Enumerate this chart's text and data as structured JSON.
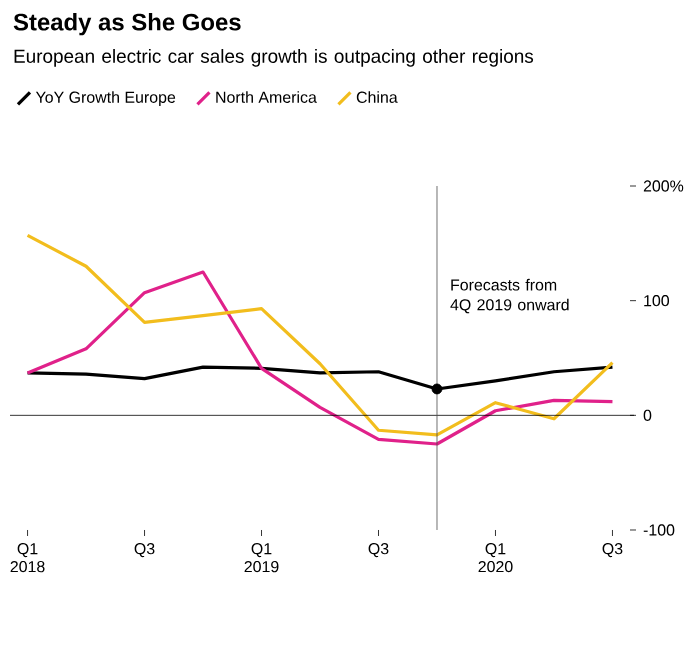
{
  "chart_data": {
    "type": "line",
    "title": "Steady as She Goes",
    "subtitle": "European electric car sales growth is outpacing other regions",
    "x": [
      "2018-01",
      "2018-04",
      "2018-07",
      "2018-10",
      "2019-01",
      "2019-04",
      "2019-07",
      "2019-10",
      "2020-01",
      "2020-04",
      "2020-07"
    ],
    "series": [
      {
        "name": "YoY Growth Europe",
        "color": "#000000",
        "values": [
          37,
          36,
          32,
          42,
          41,
          37,
          38,
          23,
          30,
          38,
          42
        ]
      },
      {
        "name": "North America",
        "color": "#e0218a",
        "values": [
          37,
          58,
          107,
          125,
          41,
          7,
          -21,
          -25,
          4,
          13,
          12
        ]
      },
      {
        "name": "China",
        "color": "#f2bd1d",
        "values": [
          157,
          130,
          81,
          87,
          93,
          45,
          -13,
          -17,
          11,
          -3,
          46
        ]
      },
      {
        "type": "scatter",
        "color": "#000000",
        "marker": "circle",
        "x": [
          "2019-10"
        ],
        "values": [
          23
        ]
      }
    ],
    "xticks": [
      {
        "value": "2018-01",
        "label": "Q1 2018"
      },
      {
        "value": "2018-07",
        "label": "Q3"
      },
      {
        "value": "2019-01",
        "label": "Q1 2019"
      },
      {
        "value": "2019-07",
        "label": "Q3"
      },
      {
        "value": "2020-01",
        "label": "Q1 2020"
      },
      {
        "value": "2020-07",
        "label": "Q3"
      }
    ],
    "xlim": [
      "2018-01",
      "2020-07"
    ],
    "ylim": [
      -100,
      200
    ],
    "yticks": [
      {
        "value": 200,
        "label": "200%"
      },
      100,
      0,
      -100
    ],
    "ref_lines": [
      {
        "axis": "y",
        "value": 0
      },
      {
        "axis": "x",
        "value": "2019-10",
        "label": "Forecasts from 4Q 2019 onward"
      }
    ],
    "legend": "top left"
  }
}
